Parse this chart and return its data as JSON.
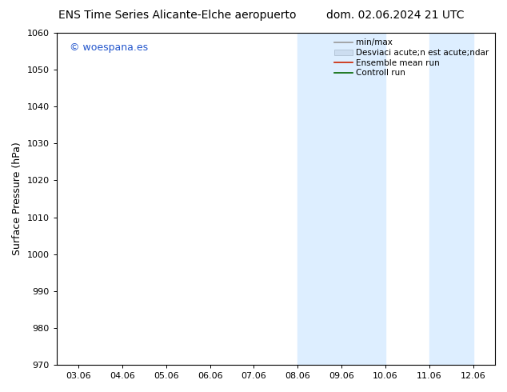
{
  "title_left": "ENS Time Series Alicante-Elche aeropuerto",
  "title_right": "dom. 02.06.2024 21 UTC",
  "ylabel": "Surface Pressure (hPa)",
  "ylim": [
    970,
    1060
  ],
  "yticks": [
    970,
    980,
    990,
    1000,
    1010,
    1020,
    1030,
    1040,
    1050,
    1060
  ],
  "xtick_labels": [
    "03.06",
    "04.06",
    "05.06",
    "06.06",
    "07.06",
    "08.06",
    "09.06",
    "10.06",
    "11.06",
    "12.06"
  ],
  "watermark": "© woespana.es",
  "watermark_color": "#2255cc",
  "shade_color": "#ddeeff",
  "background_color": "#ffffff",
  "legend_labels": [
    "min/max",
    "Desviaci acute;n est acute;ndar",
    "Ensemble mean run",
    "Controll run"
  ],
  "legend_colors_line": [
    "#aaaaaa",
    "#ccddee",
    "#cc2200",
    "#006600"
  ],
  "title_fontsize": 10,
  "tick_fontsize": 8,
  "ylabel_fontsize": 9,
  "watermark_fontsize": 9
}
